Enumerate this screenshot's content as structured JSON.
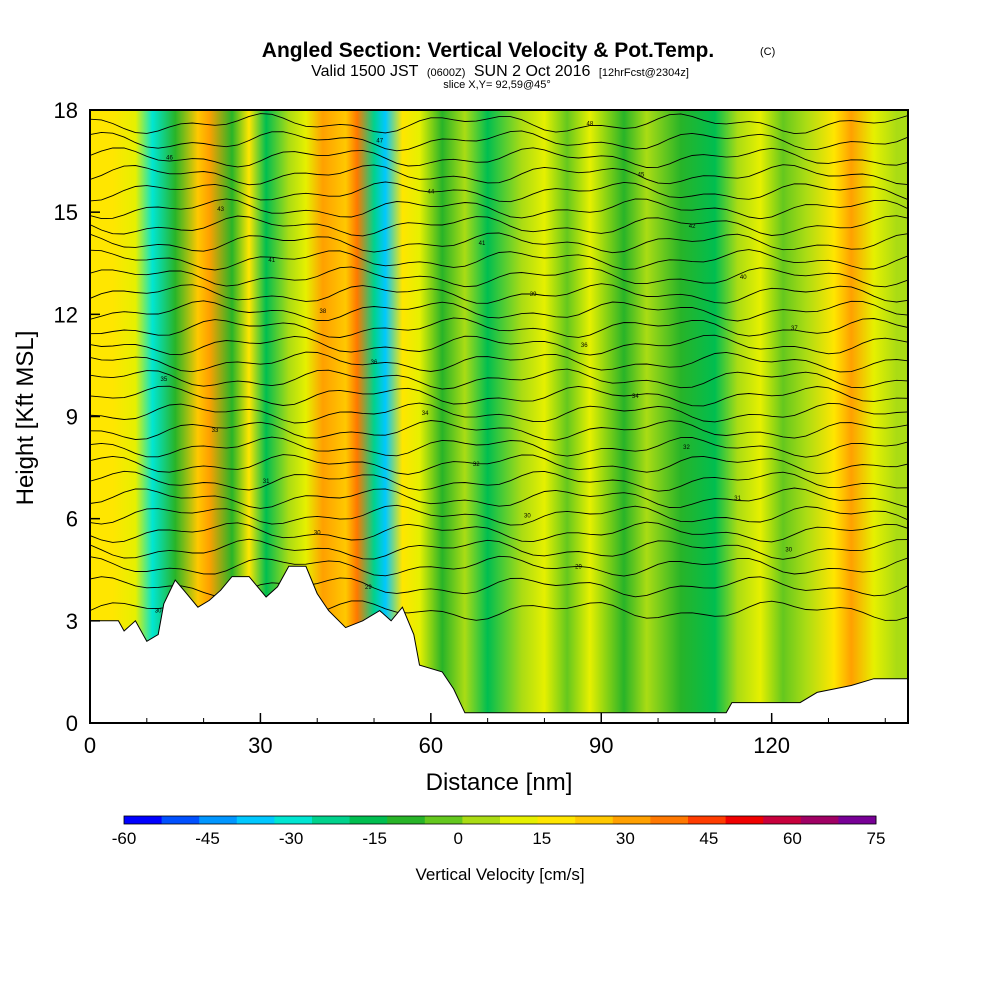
{
  "chart_data": {
    "type": "heatmap",
    "title": "Angled Section: Vertical Velocity & Pot.Temp.",
    "title_suffix": "(C)",
    "subtitle": {
      "prefix": "Valid 1500 JST",
      "utc": "(0600Z)",
      "date": "SUN 2 Oct 2016",
      "forecast": "[12hrFcst@2304z]"
    },
    "slice_label": "slice X,Y= 92,59@45°",
    "xlabel": "Distance [nm]",
    "ylabel": "Height [Kft MSL]",
    "xlim": [
      0,
      144
    ],
    "ylim": [
      0,
      18
    ],
    "x_ticks": [
      "0",
      "30",
      "60",
      "90",
      "120"
    ],
    "y_ticks": [
      "0",
      "3",
      "6",
      "9",
      "12",
      "15",
      "18"
    ],
    "colorbar": {
      "label": "Vertical Velocity [cm/s]",
      "ticks": [
        "-60",
        "-45",
        "-30",
        "-15",
        "0",
        "15",
        "30",
        "45",
        "60",
        "75"
      ],
      "colors": [
        "#0000ff",
        "#0050ff",
        "#0096ff",
        "#00c8ff",
        "#00e6d2",
        "#00d28c",
        "#00be50",
        "#28b428",
        "#64c81e",
        "#aadc14",
        "#e6f000",
        "#ffe600",
        "#ffc800",
        "#ffa000",
        "#ff7800",
        "#ff3c00",
        "#f00000",
        "#c8003c",
        "#a00064",
        "#780096"
      ]
    },
    "velocity_field_columns": [
      {
        "x": 4,
        "w": 16
      },
      {
        "x": 8,
        "w": 10
      },
      {
        "x": 11,
        "w": -30
      },
      {
        "x": 15,
        "w": -10
      },
      {
        "x": 19,
        "w": 22
      },
      {
        "x": 21,
        "w": 28
      },
      {
        "x": 25,
        "w": -10
      },
      {
        "x": 28,
        "w": 15
      },
      {
        "x": 31,
        "w": -16
      },
      {
        "x": 35,
        "w": 5
      },
      {
        "x": 38,
        "w": 12
      },
      {
        "x": 41,
        "w": 30
      },
      {
        "x": 45,
        "w": 24
      },
      {
        "x": 47,
        "w": 35
      },
      {
        "x": 50,
        "w": -20
      },
      {
        "x": 52,
        "w": -35
      },
      {
        "x": 55,
        "w": 20
      },
      {
        "x": 58,
        "w": 10
      },
      {
        "x": 62,
        "w": -8
      },
      {
        "x": 66,
        "w": 4
      },
      {
        "x": 70,
        "w": -14
      },
      {
        "x": 76,
        "w": 3
      },
      {
        "x": 80,
        "w": 12
      },
      {
        "x": 84,
        "w": -5
      },
      {
        "x": 88,
        "w": 8
      },
      {
        "x": 94,
        "w": -12
      },
      {
        "x": 98,
        "w": 2
      },
      {
        "x": 104,
        "w": -8
      },
      {
        "x": 110,
        "w": -15
      },
      {
        "x": 114,
        "w": 6
      },
      {
        "x": 118,
        "w": 10
      },
      {
        "x": 122,
        "w": -6
      },
      {
        "x": 126,
        "w": 2
      },
      {
        "x": 131,
        "w": 18
      },
      {
        "x": 134,
        "w": 28
      },
      {
        "x": 138,
        "w": 12
      },
      {
        "x": 142,
        "w": 5
      }
    ],
    "terrain": [
      [
        0,
        3.0
      ],
      [
        5,
        3.0
      ],
      [
        6,
        2.7
      ],
      [
        8,
        3.0
      ],
      [
        10,
        2.4
      ],
      [
        12,
        2.6
      ],
      [
        13,
        3.5
      ],
      [
        15,
        4.2
      ],
      [
        17,
        3.8
      ],
      [
        19,
        3.4
      ],
      [
        21,
        3.6
      ],
      [
        23,
        3.9
      ],
      [
        25,
        4.3
      ],
      [
        28,
        4.3
      ],
      [
        31,
        3.7
      ],
      [
        33,
        4.0
      ],
      [
        35,
        4.6
      ],
      [
        38,
        4.6
      ],
      [
        40,
        3.8
      ],
      [
        42,
        3.3
      ],
      [
        45,
        2.8
      ],
      [
        48,
        3.0
      ],
      [
        51,
        3.3
      ],
      [
        53,
        3.0
      ],
      [
        55,
        3.4
      ],
      [
        57,
        2.6
      ],
      [
        58,
        1.7
      ],
      [
        62,
        1.5
      ],
      [
        64,
        1.0
      ],
      [
        66,
        0.3
      ],
      [
        70,
        0.3
      ],
      [
        90,
        0.3
      ],
      [
        112,
        0.3
      ],
      [
        113,
        0.6
      ],
      [
        125,
        0.6
      ],
      [
        128,
        0.9
      ],
      [
        134,
        1.1
      ],
      [
        138,
        1.3
      ],
      [
        144,
        1.3
      ]
    ],
    "isentropes": [
      {
        "y0": 3.3,
        "label": "30"
      },
      {
        "y0": 4.0,
        "label": "29"
      },
      {
        "y0": 4.6,
        "label": "29"
      },
      {
        "y0": 5.1,
        "label": "30"
      },
      {
        "y0": 5.6,
        "label": "30"
      },
      {
        "y0": 6.1,
        "label": "30"
      },
      {
        "y0": 6.6,
        "label": "31"
      },
      {
        "y0": 7.1,
        "label": "31"
      },
      {
        "y0": 7.6,
        "label": "32"
      },
      {
        "y0": 8.1,
        "label": "32"
      },
      {
        "y0": 8.6,
        "label": "33"
      },
      {
        "y0": 9.1,
        "label": "34"
      },
      {
        "y0": 9.6,
        "label": "34"
      },
      {
        "y0": 10.1,
        "label": "35"
      },
      {
        "y0": 10.6,
        "label": "36"
      },
      {
        "y0": 11.1,
        "label": "36"
      },
      {
        "y0": 11.6,
        "label": "37"
      },
      {
        "y0": 12.1,
        "label": "38"
      },
      {
        "y0": 12.6,
        "label": "39"
      },
      {
        "y0": 13.1,
        "label": "40"
      },
      {
        "y0": 13.6,
        "label": "41"
      },
      {
        "y0": 14.1,
        "label": "41"
      },
      {
        "y0": 14.6,
        "label": "42"
      },
      {
        "y0": 15.1,
        "label": "43"
      },
      {
        "y0": 15.6,
        "label": "44"
      },
      {
        "y0": 16.1,
        "label": "45"
      },
      {
        "y0": 16.6,
        "label": "46"
      },
      {
        "y0": 17.1,
        "label": "47"
      },
      {
        "y0": 17.6,
        "label": "48"
      }
    ],
    "grid": false
  }
}
